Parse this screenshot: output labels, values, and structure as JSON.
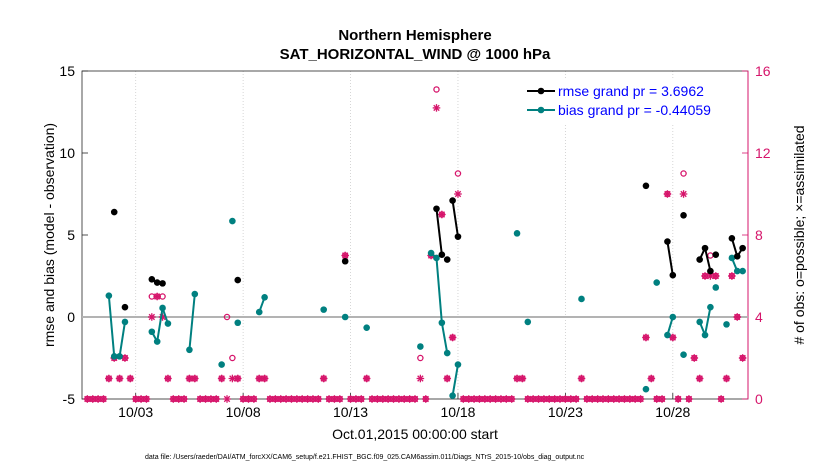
{
  "chart_data": {
    "type": "line",
    "title": "Northern Hemisphere",
    "subtitle": "SAT_HORIZONTAL_WIND @ 1000 hPa",
    "xlabel": "Oct.01,2015 00:00:00 start",
    "ylabel": "rmse and bias (model - observation)",
    "ylabel_right": "# of obs: o=possible; ×=assimilated",
    "xlim": [
      0.5,
      31.5
    ],
    "ylim": [
      -5,
      15
    ],
    "ylim_right": [
      0,
      16
    ],
    "x_ticks": [
      3,
      8,
      13,
      18,
      23,
      28
    ],
    "x_tick_labels": [
      "10/03",
      "10/08",
      "10/13",
      "10/18",
      "10/23",
      "10/28"
    ],
    "y_ticks": [
      -5,
      0,
      5,
      10,
      15
    ],
    "y_ticks_right": [
      0,
      4,
      8,
      12,
      16
    ],
    "zero_line": 0,
    "colors": {
      "rmse": "#000000",
      "bias": "#008080",
      "obs": "#d6156b",
      "zero": "#b3b3b3"
    },
    "legend": {
      "position": "top-right",
      "entries": [
        "rmse grand pr = 3.6962",
        "bias grand pr = -0.44059"
      ]
    },
    "footnote": "data file: /Users/raeder/DAI/ATM_forcXX/CAM6_setup/f.e21.FHIST_BGC.f09_025.CAM6assim.011/Diags_NTrS_2015-10/obs_diag_output.nc",
    "series": [
      {
        "name": "rmse",
        "segments": [
          [
            [
              2.0,
              6.4
            ]
          ],
          [
            [
              2.5,
              0.6
            ]
          ],
          [
            [
              3.75,
              2.3
            ],
            [
              4.0,
              2.1
            ],
            [
              4.25,
              2.05
            ]
          ],
          [
            [
              7.75,
              2.25
            ]
          ],
          [
            [
              12.75,
              3.4
            ]
          ],
          [
            [
              17.0,
              6.6
            ],
            [
              17.25,
              3.8
            ]
          ],
          [
            [
              17.5,
              3.5
            ]
          ],
          [
            [
              17.75,
              7.1
            ],
            [
              18.0,
              4.9
            ]
          ],
          [
            [
              26.75,
              8.0
            ]
          ],
          [
            [
              27.75,
              4.6
            ],
            [
              28.0,
              2.55
            ]
          ],
          [
            [
              28.5,
              6.2
            ]
          ],
          [
            [
              29.25,
              3.5
            ],
            [
              29.5,
              4.2
            ],
            [
              29.75,
              2.8
            ]
          ],
          [
            [
              30.0,
              3.8
            ]
          ],
          [
            [
              30.75,
              4.8
            ],
            [
              31.0,
              3.7
            ],
            [
              31.25,
              4.2
            ]
          ]
        ]
      },
      {
        "name": "bias",
        "segments": [
          [
            [
              1.75,
              1.3
            ],
            [
              2.0,
              -2.4
            ],
            [
              2.25,
              -2.4
            ],
            [
              2.5,
              -0.3
            ]
          ],
          [
            [
              3.75,
              -0.9
            ],
            [
              4.0,
              -1.5
            ],
            [
              4.25,
              0.55
            ],
            [
              4.5,
              -0.4
            ]
          ],
          [
            [
              5.5,
              -2.0
            ],
            [
              5.75,
              1.4
            ]
          ],
          [
            [
              7.0,
              -2.9
            ]
          ],
          [
            [
              7.5,
              5.85
            ]
          ],
          [
            [
              7.75,
              -0.35
            ]
          ],
          [
            [
              8.75,
              0.3
            ],
            [
              9.0,
              1.2
            ]
          ],
          [
            [
              11.75,
              0.45
            ]
          ],
          [
            [
              12.75,
              0.0
            ]
          ],
          [
            [
              13.75,
              -0.65
            ]
          ],
          [
            [
              16.25,
              -1.8
            ]
          ],
          [
            [
              16.75,
              3.9
            ],
            [
              17.0,
              3.6
            ],
            [
              17.25,
              -0.35
            ],
            [
              17.5,
              -2.2
            ]
          ],
          [
            [
              17.75,
              -4.8
            ],
            [
              18.0,
              -2.9
            ]
          ],
          [
            [
              20.75,
              5.1
            ]
          ],
          [
            [
              21.25,
              -0.3
            ]
          ],
          [
            [
              23.75,
              1.1
            ]
          ],
          [
            [
              26.75,
              -4.4
            ]
          ],
          [
            [
              27.25,
              2.1
            ]
          ],
          [
            [
              27.75,
              -1.1
            ],
            [
              28.0,
              0.0
            ]
          ],
          [
            [
              28.5,
              -2.3
            ]
          ],
          [
            [
              29.25,
              -0.3
            ],
            [
              29.5,
              -1.1
            ],
            [
              29.75,
              0.6
            ]
          ],
          [
            [
              30.0,
              1.8
            ]
          ],
          [
            [
              30.5,
              -0.45
            ]
          ],
          [
            [
              30.75,
              3.6
            ],
            [
              31.0,
              2.8
            ],
            [
              31.25,
              2.8
            ]
          ]
        ]
      }
    ],
    "obs_possible": [
      [
        0.75,
        0
      ],
      [
        1.0,
        0
      ],
      [
        1.25,
        0
      ],
      [
        1.5,
        0
      ],
      [
        1.75,
        1
      ],
      [
        2.0,
        2
      ],
      [
        2.25,
        1
      ],
      [
        2.5,
        2
      ],
      [
        2.75,
        1
      ],
      [
        3.0,
        0
      ],
      [
        3.25,
        0
      ],
      [
        3.5,
        0
      ],
      [
        3.75,
        5
      ],
      [
        4.0,
        5
      ],
      [
        4.25,
        5
      ],
      [
        4.5,
        1
      ],
      [
        4.75,
        0
      ],
      [
        5.0,
        0
      ],
      [
        5.25,
        0
      ],
      [
        5.5,
        1
      ],
      [
        5.75,
        1
      ],
      [
        6.0,
        0
      ],
      [
        6.25,
        0
      ],
      [
        6.5,
        0
      ],
      [
        6.75,
        0
      ],
      [
        7.0,
        1
      ],
      [
        7.25,
        4
      ],
      [
        7.5,
        2
      ],
      [
        7.75,
        1
      ],
      [
        8.0,
        0
      ],
      [
        8.25,
        0
      ],
      [
        8.5,
        0
      ],
      [
        8.75,
        1
      ],
      [
        9.0,
        1
      ],
      [
        9.25,
        0
      ],
      [
        9.5,
        0
      ],
      [
        9.75,
        0
      ],
      [
        10.0,
        0
      ],
      [
        10.25,
        0
      ],
      [
        10.5,
        0
      ],
      [
        10.75,
        0
      ],
      [
        11.0,
        0
      ],
      [
        11.25,
        0
      ],
      [
        11.5,
        0
      ],
      [
        11.75,
        1
      ],
      [
        12.0,
        0
      ],
      [
        12.25,
        0
      ],
      [
        12.5,
        0
      ],
      [
        12.75,
        7
      ],
      [
        13.0,
        0
      ],
      [
        13.25,
        0
      ],
      [
        13.5,
        0
      ],
      [
        13.75,
        1
      ],
      [
        14.0,
        0
      ],
      [
        14.25,
        0
      ],
      [
        14.5,
        0
      ],
      [
        14.75,
        0
      ],
      [
        15.0,
        0
      ],
      [
        15.25,
        0
      ],
      [
        15.5,
        0
      ],
      [
        15.75,
        0
      ],
      [
        16.0,
        0
      ],
      [
        16.25,
        2
      ],
      [
        16.5,
        0
      ],
      [
        16.75,
        7
      ],
      [
        17.0,
        15.1
      ],
      [
        17.25,
        9
      ],
      [
        17.5,
        1
      ],
      [
        17.75,
        3
      ],
      [
        18.0,
        11
      ],
      [
        18.25,
        0
      ],
      [
        18.5,
        0
      ],
      [
        18.75,
        0
      ],
      [
        19.0,
        0
      ],
      [
        19.25,
        0
      ],
      [
        19.5,
        0
      ],
      [
        19.75,
        0
      ],
      [
        20.0,
        0
      ],
      [
        20.25,
        0
      ],
      [
        20.5,
        0
      ],
      [
        20.75,
        1
      ],
      [
        21.0,
        1
      ],
      [
        21.25,
        0
      ],
      [
        21.5,
        0
      ],
      [
        21.75,
        0
      ],
      [
        22.0,
        0
      ],
      [
        22.25,
        0
      ],
      [
        22.5,
        0
      ],
      [
        22.75,
        0
      ],
      [
        23.0,
        0
      ],
      [
        23.25,
        0
      ],
      [
        23.5,
        0
      ],
      [
        23.75,
        1
      ],
      [
        24.0,
        0
      ],
      [
        24.25,
        0
      ],
      [
        24.5,
        0
      ],
      [
        24.75,
        0
      ],
      [
        25.0,
        0
      ],
      [
        25.25,
        0
      ],
      [
        25.5,
        0
      ],
      [
        25.75,
        0
      ],
      [
        26.0,
        0
      ],
      [
        26.25,
        0
      ],
      [
        26.5,
        0
      ],
      [
        26.75,
        3
      ],
      [
        27.0,
        1
      ],
      [
        27.25,
        0
      ],
      [
        27.5,
        0
      ],
      [
        27.75,
        10
      ],
      [
        28.0,
        3
      ],
      [
        28.25,
        0
      ],
      [
        28.5,
        11
      ],
      [
        28.75,
        0
      ],
      [
        29.0,
        2
      ],
      [
        29.25,
        1
      ],
      [
        29.5,
        6
      ],
      [
        29.75,
        7
      ],
      [
        30.0,
        6
      ],
      [
        30.25,
        0
      ],
      [
        30.5,
        1
      ],
      [
        30.75,
        6
      ],
      [
        31.0,
        4
      ],
      [
        31.25,
        2
      ]
    ],
    "obs_assimilated": [
      [
        0.75,
        0
      ],
      [
        1.0,
        0
      ],
      [
        1.25,
        0
      ],
      [
        1.5,
        0
      ],
      [
        1.75,
        1
      ],
      [
        2.0,
        2
      ],
      [
        2.25,
        1
      ],
      [
        2.5,
        2
      ],
      [
        2.75,
        1
      ],
      [
        3.0,
        0
      ],
      [
        3.25,
        0
      ],
      [
        3.5,
        0
      ],
      [
        3.75,
        4
      ],
      [
        4.0,
        5
      ],
      [
        4.25,
        4
      ],
      [
        4.5,
        1
      ],
      [
        4.75,
        0
      ],
      [
        5.0,
        0
      ],
      [
        5.25,
        0
      ],
      [
        5.5,
        1
      ],
      [
        5.75,
        1
      ],
      [
        6.0,
        0
      ],
      [
        6.25,
        0
      ],
      [
        6.5,
        0
      ],
      [
        6.75,
        0
      ],
      [
        7.0,
        1
      ],
      [
        7.25,
        0
      ],
      [
        7.5,
        1
      ],
      [
        7.75,
        1
      ],
      [
        8.0,
        0
      ],
      [
        8.25,
        0
      ],
      [
        8.5,
        0
      ],
      [
        8.75,
        1
      ],
      [
        9.0,
        1
      ],
      [
        9.25,
        0
      ],
      [
        9.5,
        0
      ],
      [
        9.75,
        0
      ],
      [
        10.0,
        0
      ],
      [
        10.25,
        0
      ],
      [
        10.5,
        0
      ],
      [
        10.75,
        0
      ],
      [
        11.0,
        0
      ],
      [
        11.25,
        0
      ],
      [
        11.5,
        0
      ],
      [
        11.75,
        1
      ],
      [
        12.0,
        0
      ],
      [
        12.25,
        0
      ],
      [
        12.5,
        0
      ],
      [
        12.75,
        7
      ],
      [
        13.0,
        0
      ],
      [
        13.25,
        0
      ],
      [
        13.5,
        0
      ],
      [
        13.75,
        1
      ],
      [
        14.0,
        0
      ],
      [
        14.25,
        0
      ],
      [
        14.5,
        0
      ],
      [
        14.75,
        0
      ],
      [
        15.0,
        0
      ],
      [
        15.25,
        0
      ],
      [
        15.5,
        0
      ],
      [
        15.75,
        0
      ],
      [
        16.0,
        0
      ],
      [
        16.25,
        1
      ],
      [
        16.5,
        0
      ],
      [
        16.75,
        7
      ],
      [
        17.0,
        14.2
      ],
      [
        17.25,
        9
      ],
      [
        17.5,
        1
      ],
      [
        17.75,
        3
      ],
      [
        18.0,
        10
      ],
      [
        18.25,
        0
      ],
      [
        18.5,
        0
      ],
      [
        18.75,
        0
      ],
      [
        19.0,
        0
      ],
      [
        19.25,
        0
      ],
      [
        19.5,
        0
      ],
      [
        19.75,
        0
      ],
      [
        20.0,
        0
      ],
      [
        20.25,
        0
      ],
      [
        20.5,
        0
      ],
      [
        20.75,
        1
      ],
      [
        21.0,
        1
      ],
      [
        21.25,
        0
      ],
      [
        21.5,
        0
      ],
      [
        21.75,
        0
      ],
      [
        22.0,
        0
      ],
      [
        22.25,
        0
      ],
      [
        22.5,
        0
      ],
      [
        22.75,
        0
      ],
      [
        23.0,
        0
      ],
      [
        23.25,
        0
      ],
      [
        23.5,
        0
      ],
      [
        23.75,
        1
      ],
      [
        24.0,
        0
      ],
      [
        24.25,
        0
      ],
      [
        24.5,
        0
      ],
      [
        24.75,
        0
      ],
      [
        25.0,
        0
      ],
      [
        25.25,
        0
      ],
      [
        25.5,
        0
      ],
      [
        25.75,
        0
      ],
      [
        26.0,
        0
      ],
      [
        26.25,
        0
      ],
      [
        26.5,
        0
      ],
      [
        26.75,
        3
      ],
      [
        27.0,
        1
      ],
      [
        27.25,
        0
      ],
      [
        27.5,
        0
      ],
      [
        27.75,
        10
      ],
      [
        28.0,
        3
      ],
      [
        28.25,
        0
      ],
      [
        28.5,
        10
      ],
      [
        28.75,
        0
      ],
      [
        29.0,
        2
      ],
      [
        29.25,
        1
      ],
      [
        29.5,
        6
      ],
      [
        29.75,
        6
      ],
      [
        30.0,
        6
      ],
      [
        30.25,
        0
      ],
      [
        30.5,
        1
      ],
      [
        30.75,
        6
      ],
      [
        31.0,
        4
      ],
      [
        31.25,
        2
      ]
    ]
  }
}
